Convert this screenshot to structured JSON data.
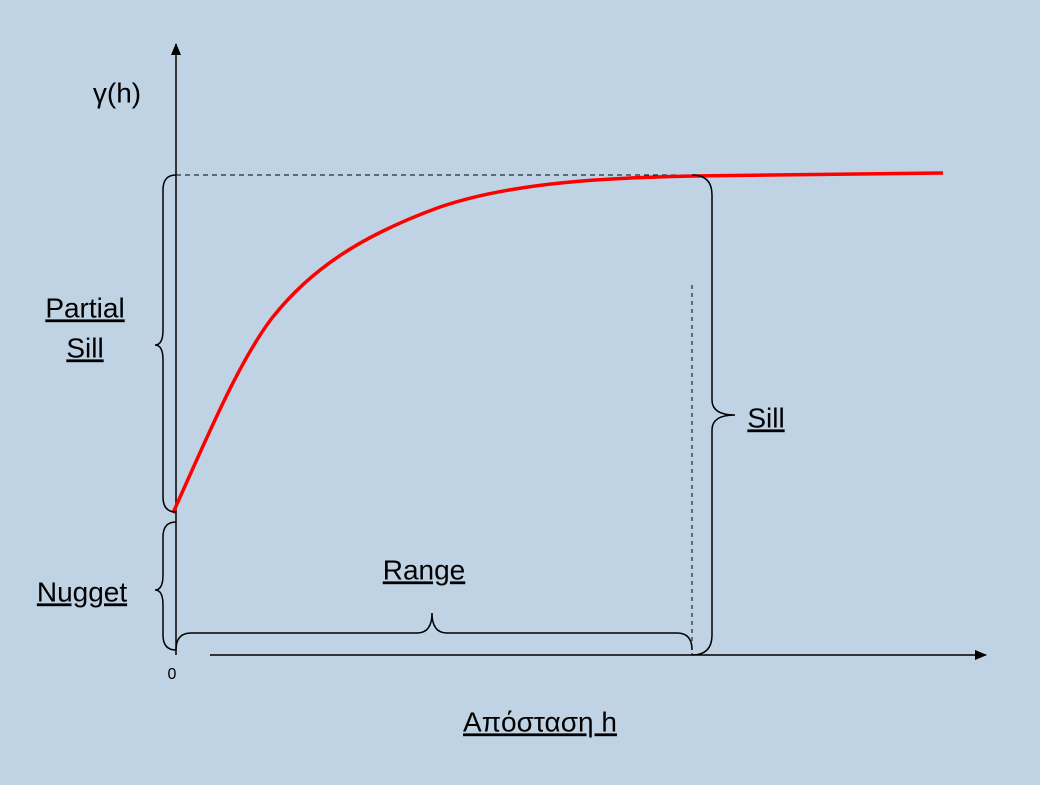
{
  "axes": {
    "y_label": "γ(h)",
    "x_label": "Απόσταση h",
    "origin": "0"
  },
  "labels": {
    "partial_sill": [
      "Partial",
      "Sill"
    ],
    "sill": "Sill",
    "nugget": "Nugget",
    "range": "Range"
  }
}
